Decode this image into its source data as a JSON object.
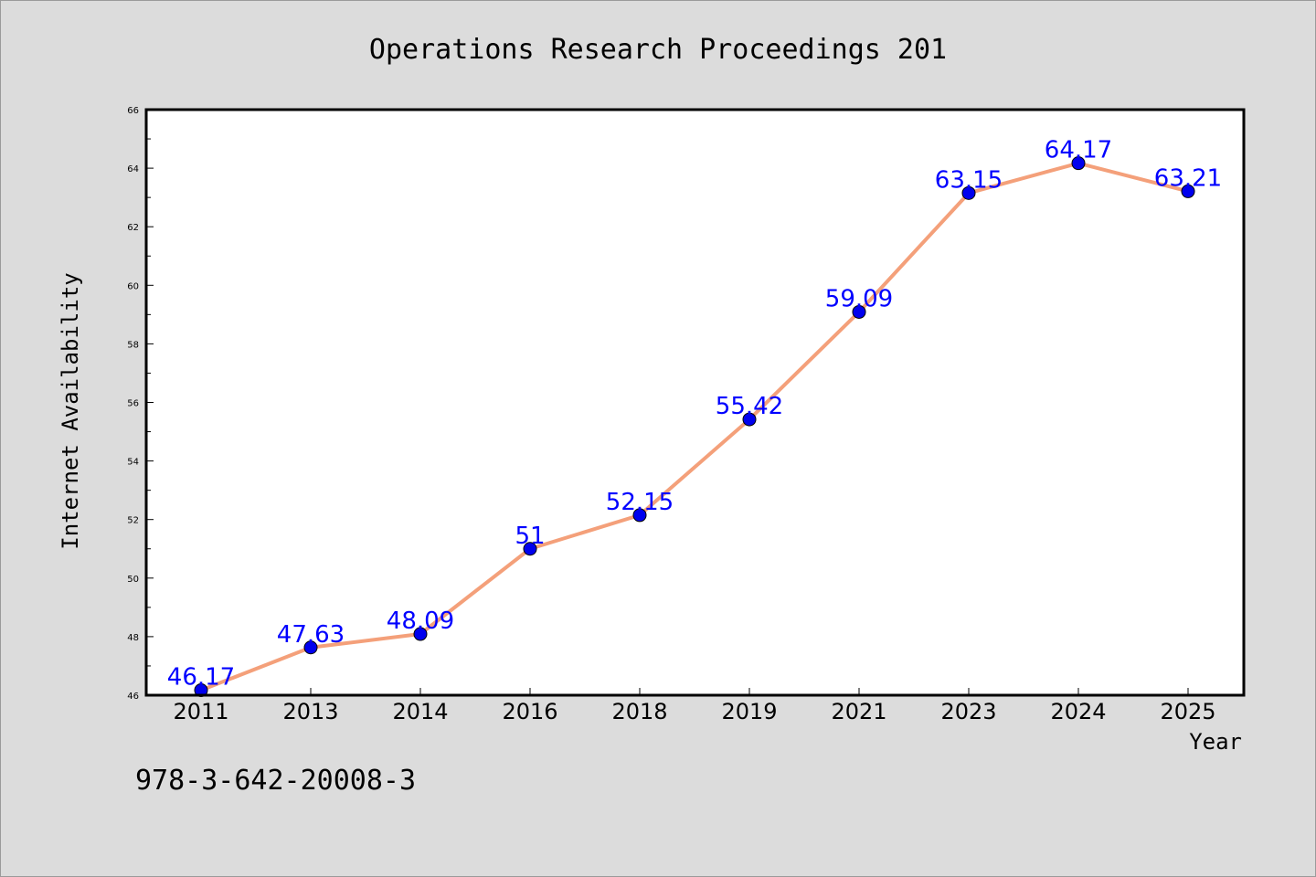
{
  "figure": {
    "title": "Operations Research Proceedings 201",
    "footer": "978-3-642-20008-3",
    "background": "#dcdcdc",
    "plot_background": "#ffffff"
  },
  "chart_data": {
    "type": "line",
    "title": "Operations Research Proceedings 201",
    "xlabel": "Year",
    "ylabel": "Internet Availability",
    "categories": [
      "2011",
      "2013",
      "2014",
      "2016",
      "2018",
      "2019",
      "2021",
      "2023",
      "2024",
      "2025"
    ],
    "series": [
      {
        "values": [
          46.17,
          47.63,
          48.09,
          51,
          52.15,
          55.42,
          59.09,
          63.15,
          64.17,
          63.21
        ],
        "labels": [
          "46.17",
          "47.63",
          "48.09",
          "51",
          "52.15",
          "55.42",
          "59.09",
          "63.15",
          "64.17",
          "63.21"
        ],
        "line_color": "#f4a07a",
        "marker_color": "#0000ee"
      }
    ],
    "ylim": [
      46,
      66
    ],
    "yticks": [
      "46",
      "48",
      "50",
      "52",
      "54",
      "56",
      "58",
      "60",
      "62",
      "64",
      "66"
    ],
    "grid": false,
    "legend": "none",
    "label_color": "#0000ff"
  }
}
